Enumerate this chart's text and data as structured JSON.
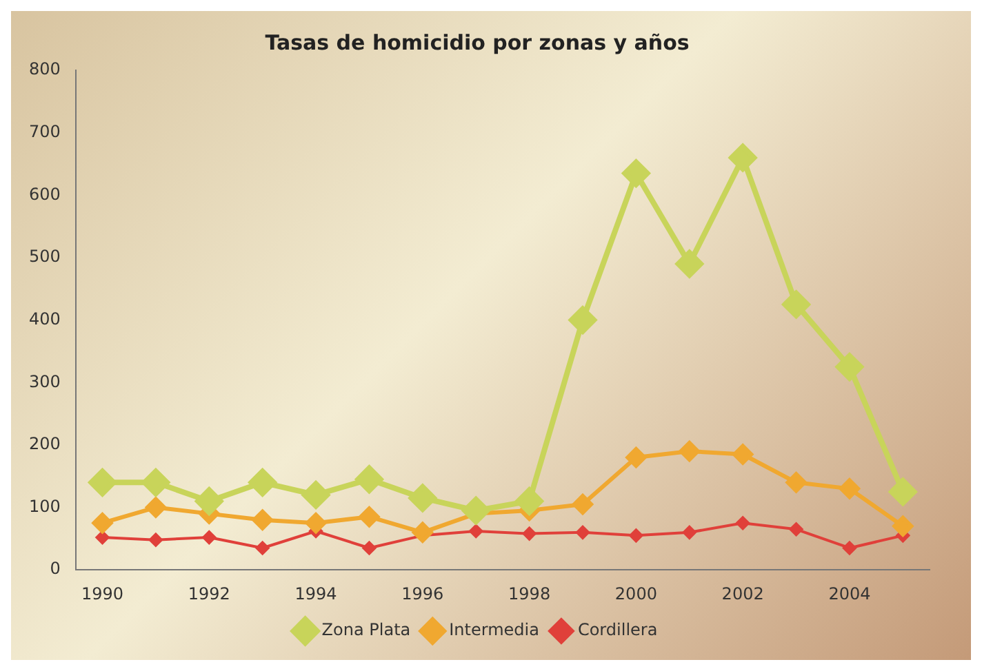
{
  "chart_data": {
    "type": "line",
    "title": "Tasas de homicidio por zonas y años",
    "x": [
      1990,
      1991,
      1992,
      1993,
      1994,
      1995,
      1996,
      1997,
      1998,
      1999,
      2000,
      2001,
      2002,
      2003,
      2004,
      2005
    ],
    "series": [
      {
        "name": "Zona Plata",
        "color": "#c8d45a",
        "values": [
          140,
          140,
          110,
          140,
          120,
          145,
          115,
          95,
          110,
          400,
          635,
          490,
          660,
          425,
          325,
          125
        ]
      },
      {
        "name": "Intermedia",
        "color": "#f0a830",
        "values": [
          75,
          100,
          90,
          80,
          75,
          85,
          60,
          90,
          95,
          105,
          180,
          190,
          185,
          140,
          130,
          70
        ]
      },
      {
        "name": "Cordillera",
        "color": "#e0403a",
        "values": [
          52,
          48,
          52,
          35,
          62,
          35,
          55,
          62,
          58,
          60,
          55,
          60,
          75,
          65,
          35,
          55
        ]
      }
    ],
    "xlim": [
      1989.5,
      2005.5
    ],
    "xticks": [
      1990,
      1992,
      1994,
      1996,
      1998,
      2000,
      2002,
      2004
    ],
    "ylim": [
      0,
      800
    ],
    "yticks": [
      0,
      100,
      200,
      300,
      400,
      500,
      600,
      700,
      800
    ],
    "grid": false,
    "legend": "bottom",
    "marker": "diamond",
    "line_style": "solid"
  }
}
